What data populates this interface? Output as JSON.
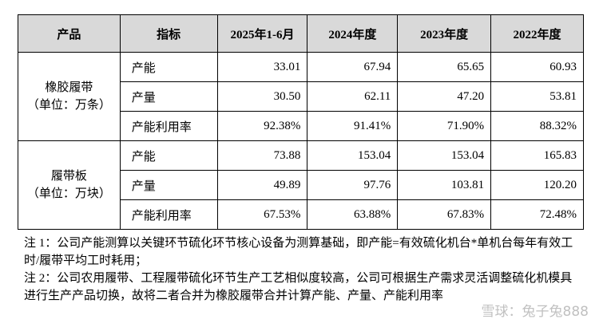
{
  "table": {
    "header": [
      "产品",
      "指标",
      "2025年1-6月",
      "2024年度",
      "2023年度",
      "2022年度"
    ],
    "groups": [
      {
        "product": "橡胶履带",
        "unit": "（单位：万条）",
        "rows": [
          {
            "indicator": "产能",
            "values": [
              "33.01",
              "67.94",
              "65.65",
              "60.93"
            ]
          },
          {
            "indicator": "产量",
            "values": [
              "30.50",
              "62.11",
              "47.20",
              "53.81"
            ]
          },
          {
            "indicator": "产能利用率",
            "values": [
              "92.38%",
              "91.41%",
              "71.90%",
              "88.32%"
            ]
          }
        ]
      },
      {
        "product": "履带板",
        "unit": "（单位：万块）",
        "rows": [
          {
            "indicator": "产能",
            "values": [
              "73.88",
              "153.04",
              "153.04",
              "165.83"
            ]
          },
          {
            "indicator": "产量",
            "values": [
              "49.89",
              "97.76",
              "103.81",
              "120.20"
            ]
          },
          {
            "indicator": "产能利用率",
            "values": [
              "67.53%",
              "63.88%",
              "67.83%",
              "72.48%"
            ]
          }
        ]
      }
    ]
  },
  "notes": [
    "注 1：公司产能测算以关键环节硫化环节核心设备为测算基础，即产能=有效硫化机台*单机台每年有效工时/履带平均工时耗用；",
    "注 2：公司农用履带、工程履带硫化环节生产工艺相似度较高，公司可根据生产需求灵活调整硫化机模具进行生产产品切换，故将二者合并为橡胶履带合并计算产能、产量、产能利用率"
  ],
  "watermark": "雪球：兔子兔888"
}
